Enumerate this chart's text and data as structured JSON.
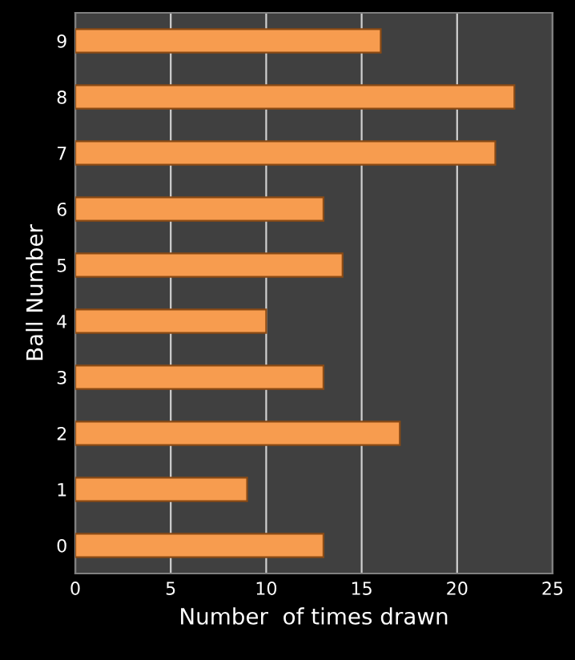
{
  "chart_data": {
    "type": "bar",
    "orientation": "horizontal",
    "xlabel": "Number  of times drawn",
    "ylabel": "Ball Number",
    "categories": [
      "9",
      "8",
      "7",
      "6",
      "5",
      "4",
      "3",
      "2",
      "1",
      "0"
    ],
    "values": [
      16,
      23,
      22,
      13,
      14,
      10,
      13,
      17,
      9,
      13
    ],
    "color": "#f79c4f",
    "xlim": [
      0,
      25
    ],
    "xticks": [
      0,
      5,
      10,
      15,
      20,
      25
    ],
    "grid": "x"
  }
}
